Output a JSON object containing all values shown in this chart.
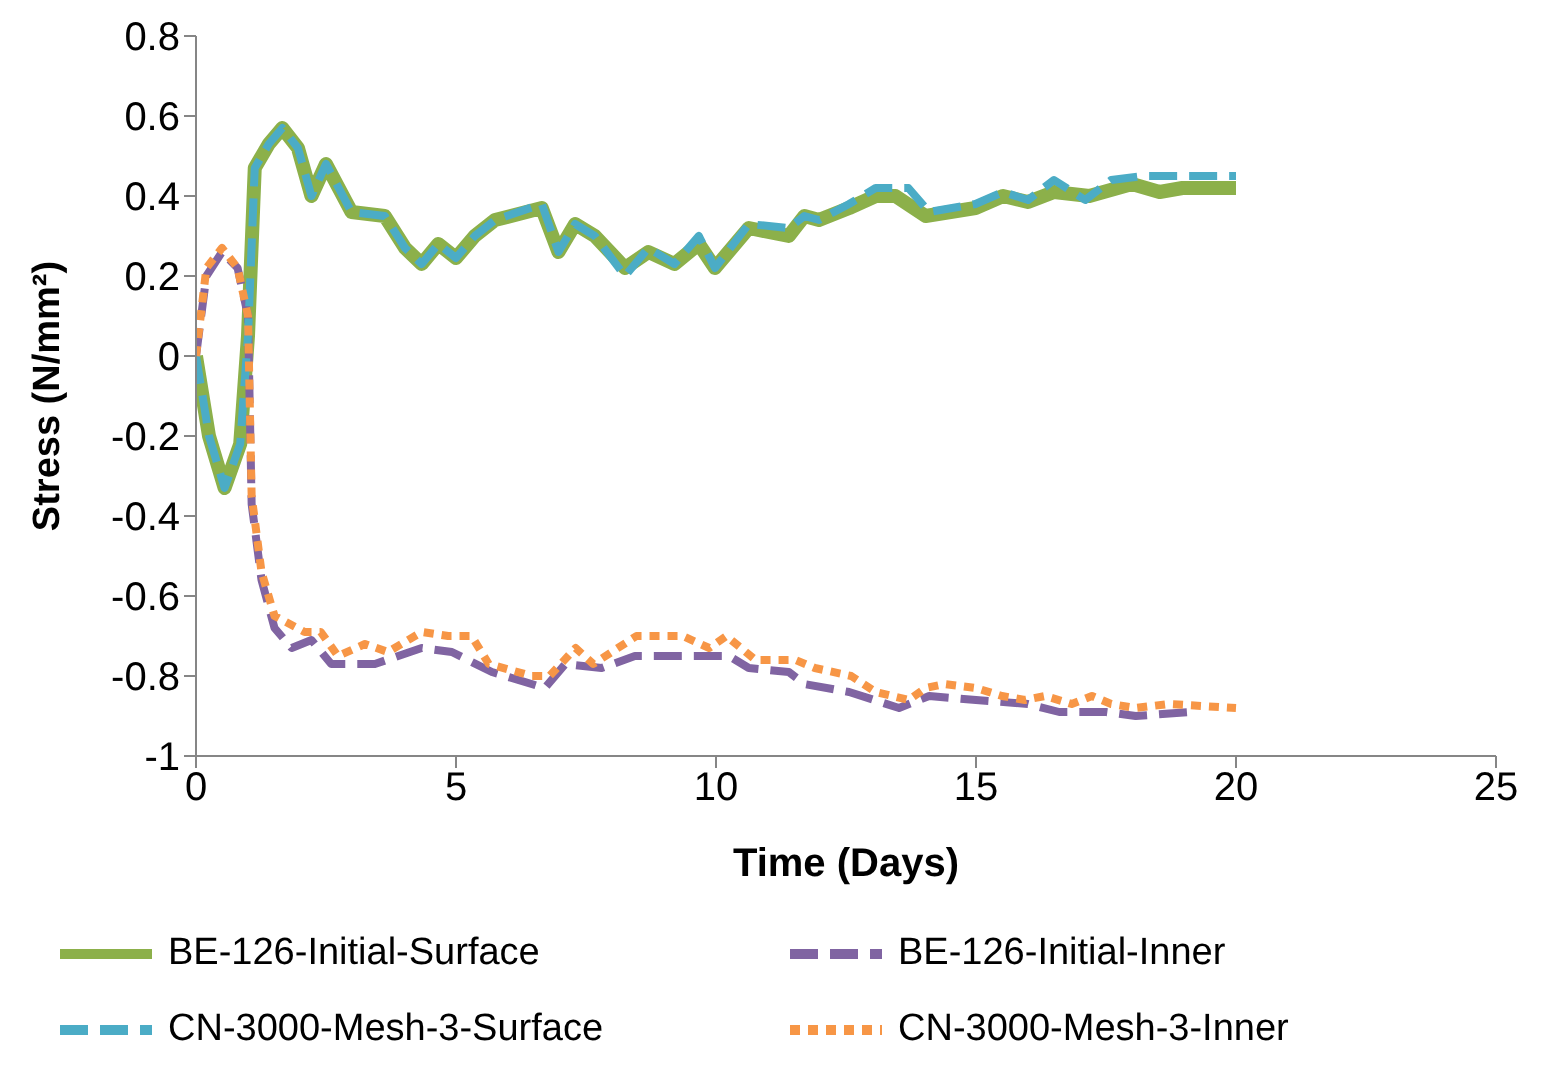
{
  "chart_data": {
    "type": "line",
    "xlabel": "Time (Days)",
    "ylabel": "Stress (N/mm²)",
    "xlim": [
      0,
      25
    ],
    "xticks": [
      0,
      5,
      10,
      15,
      20,
      25
    ],
    "ylim": [
      -1,
      0.8
    ],
    "yticks": [
      -1,
      -0.8,
      -0.6,
      -0.4,
      -0.2,
      0,
      0.2,
      0.4,
      0.6,
      0.8
    ],
    "grid": false,
    "legend": "bottom",
    "marker": "none",
    "series": [
      {
        "name": "BE-126-Initial-Surface",
        "color": "#8cb04a",
        "line_style": "solid",
        "x": [
          0,
          0.25,
          0.55,
          0.85,
          1.0,
          1.13,
          1.4,
          1.66,
          1.96,
          2.22,
          2.5,
          2.99,
          3.63,
          4.02,
          4.34,
          4.66,
          5.0,
          5.36,
          5.75,
          6.65,
          6.97,
          7.29,
          7.67,
          8.25,
          8.7,
          9.2,
          9.67,
          9.98,
          10.63,
          11.4,
          11.7,
          11.98,
          12.56,
          13.07,
          13.45,
          14.03,
          14.99,
          15.52,
          16.0,
          16.5,
          17.18,
          18.0,
          18.53,
          18.97,
          20.0
        ],
        "values": [
          0,
          -0.2,
          -0.33,
          -0.22,
          0.05,
          0.47,
          0.53,
          0.57,
          0.52,
          0.4,
          0.48,
          0.36,
          0.35,
          0.27,
          0.23,
          0.28,
          0.245,
          0.3,
          0.34,
          0.37,
          0.26,
          0.33,
          0.3,
          0.22,
          0.26,
          0.23,
          0.28,
          0.22,
          0.32,
          0.3,
          0.35,
          0.34,
          0.37,
          0.4,
          0.4,
          0.35,
          0.37,
          0.4,
          0.385,
          0.41,
          0.4,
          0.43,
          0.41,
          0.42,
          0.42
        ]
      },
      {
        "name": "BE-126-Initial-Inner",
        "color": "#8064a2",
        "line_style": "dashed",
        "x": [
          0,
          0.2,
          0.5,
          0.8,
          1.0,
          1.07,
          1.26,
          1.51,
          1.84,
          2.22,
          2.6,
          3.44,
          4.34,
          4.92,
          5.69,
          6.71,
          7.1,
          7.8,
          8.44,
          9.4,
          10.25,
          10.63,
          11.4,
          11.7,
          12.56,
          13.52,
          14.1,
          15.0,
          16.0,
          16.6,
          17.5,
          18.07,
          19.1
        ],
        "values": [
          0,
          0.2,
          0.26,
          0.22,
          0.1,
          -0.37,
          -0.56,
          -0.68,
          -0.73,
          -0.71,
          -0.77,
          -0.77,
          -0.73,
          -0.74,
          -0.79,
          -0.83,
          -0.77,
          -0.78,
          -0.75,
          -0.75,
          -0.75,
          -0.78,
          -0.79,
          -0.82,
          -0.84,
          -0.88,
          -0.85,
          -0.86,
          -0.87,
          -0.89,
          -0.89,
          -0.9,
          -0.89
        ]
      },
      {
        "name": "CN-3000-Mesh-3-Surface",
        "color": "#4bacc6",
        "line_style": "dashed",
        "x": [
          0,
          0.25,
          0.55,
          0.85,
          1.0,
          1.13,
          1.4,
          1.66,
          1.96,
          2.22,
          2.5,
          2.99,
          3.63,
          4.02,
          4.34,
          4.66,
          5.0,
          5.36,
          5.75,
          6.65,
          6.97,
          7.29,
          7.67,
          8.25,
          8.7,
          9.2,
          9.67,
          9.98,
          10.63,
          11.4,
          11.7,
          11.98,
          12.56,
          13.07,
          13.45,
          13.7,
          14.1,
          14.99,
          15.52,
          16.0,
          16.5,
          17.1,
          17.6,
          18.2,
          20.0
        ],
        "values": [
          0,
          -0.2,
          -0.33,
          -0.22,
          0.05,
          0.47,
          0.53,
          0.57,
          0.52,
          0.4,
          0.48,
          0.36,
          0.35,
          0.27,
          0.23,
          0.28,
          0.245,
          0.3,
          0.34,
          0.38,
          0.26,
          0.33,
          0.3,
          0.2,
          0.27,
          0.23,
          0.3,
          0.22,
          0.33,
          0.32,
          0.35,
          0.34,
          0.38,
          0.42,
          0.42,
          0.42,
          0.36,
          0.38,
          0.41,
          0.39,
          0.44,
          0.39,
          0.44,
          0.45,
          0.45
        ]
      },
      {
        "name": "CN-3000-Mesh-3-Inner",
        "color": "#f79646",
        "line_style": "dotted",
        "x": [
          0,
          0.2,
          0.5,
          0.8,
          1.0,
          1.07,
          1.26,
          1.51,
          2.09,
          2.4,
          2.73,
          3.25,
          3.69,
          4.34,
          4.85,
          5.3,
          5.63,
          6.46,
          6.8,
          7.3,
          7.64,
          8.47,
          9.36,
          9.87,
          10.2,
          10.76,
          11.53,
          11.9,
          12.6,
          13.07,
          13.71,
          14.03,
          14.4,
          15.0,
          15.5,
          15.94,
          16.33,
          16.84,
          17.23,
          17.6,
          18.07,
          18.7,
          20.0
        ],
        "values": [
          0,
          0.22,
          0.27,
          0.22,
          0.1,
          -0.35,
          -0.54,
          -0.65,
          -0.69,
          -0.69,
          -0.75,
          -0.72,
          -0.74,
          -0.69,
          -0.7,
          -0.7,
          -0.77,
          -0.8,
          -0.8,
          -0.73,
          -0.77,
          -0.7,
          -0.7,
          -0.73,
          -0.7,
          -0.76,
          -0.76,
          -0.78,
          -0.8,
          -0.84,
          -0.86,
          -0.83,
          -0.82,
          -0.83,
          -0.85,
          -0.86,
          -0.85,
          -0.87,
          -0.85,
          -0.87,
          -0.88,
          -0.87,
          -0.88
        ]
      }
    ]
  }
}
